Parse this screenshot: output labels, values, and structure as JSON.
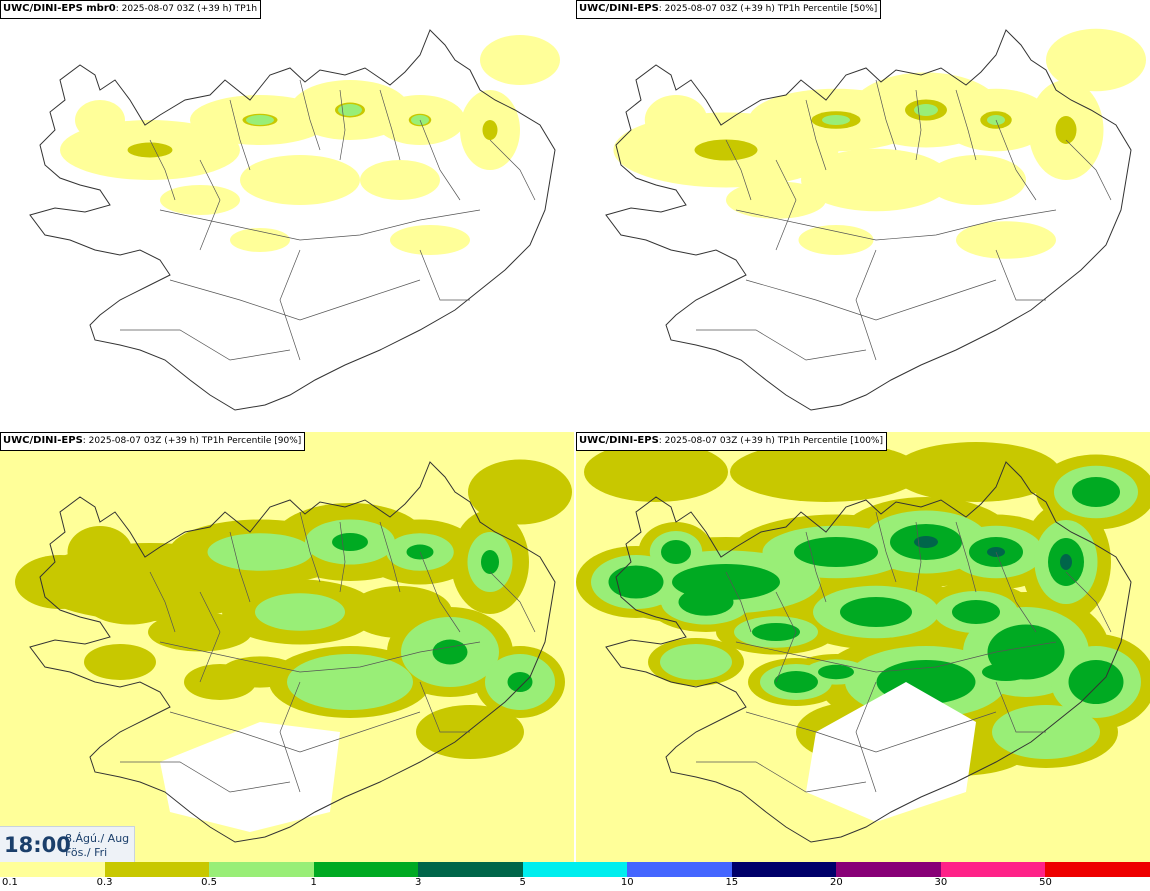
{
  "panels": [
    {
      "model": "UWC/DINI-EPS",
      "member": " mbr0",
      "run": ": 2025-08-07 03Z (+39 h)",
      "field": "TP1h",
      "intensity": 0
    },
    {
      "model": "UWC/DINI-EPS",
      "member": "",
      "run": ": 2025-08-07 03Z (+39 h)",
      "field": "TP1h Percentile [50%]",
      "intensity": 1
    },
    {
      "model": "UWC/DINI-EPS",
      "member": "",
      "run": ": 2025-08-07 03Z (+39 h)",
      "field": "TP1h Percentile [90%]",
      "intensity": 2
    },
    {
      "model": "UWC/DINI-EPS",
      "member": "",
      "run": ": 2025-08-07 03Z (+39 h)",
      "field": "TP1h Percentile [100%]",
      "intensity": 3
    }
  ],
  "valid_time": {
    "clock": "18:00",
    "date_line1": "8.Ágú./ Aug",
    "date_line2": "Fös./ Fri"
  },
  "legend": {
    "colors": [
      "#ffff99",
      "#c8c800",
      "#99ee77",
      "#00aa22",
      "#00664a",
      "#00eeee",
      "#4466ff",
      "#00006a",
      "#880077",
      "#ff2288",
      "#ee0000"
    ],
    "labels": [
      "0.1",
      "0.3",
      "0.5",
      "1",
      "3",
      "5",
      "10",
      "15",
      "20",
      "30",
      "50"
    ]
  }
}
